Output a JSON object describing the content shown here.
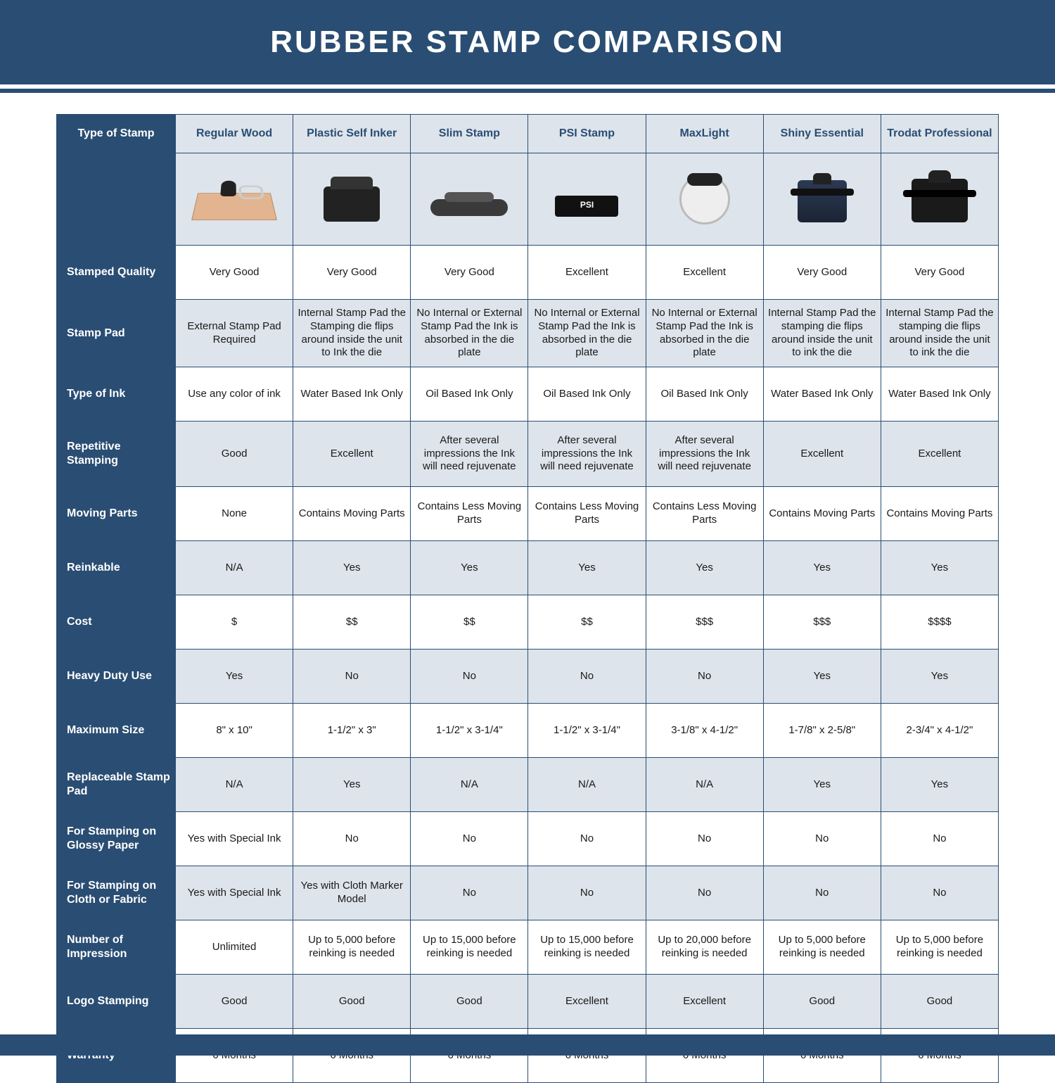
{
  "title": "RUBBER STAMP COMPARISON",
  "colors": {
    "brand": "#2a4d73",
    "alt_row": "#dde4eb",
    "border": "#2a4d73",
    "text": "#1a1a1a",
    "white": "#ffffff"
  },
  "table": {
    "type": "comparison-table",
    "corner_label": "Type of Stamp",
    "columns": [
      "Regular Wood",
      "Plastic Self Inker",
      "Slim Stamp",
      "PSI Stamp",
      "MaxLight",
      "Shiny Essential",
      "Trodat Professional"
    ],
    "icon_keys": [
      "wood",
      "selfink",
      "slim",
      "psi",
      "maxlight",
      "shiny",
      "trodat"
    ],
    "rows": [
      {
        "label": "Stamped Quality",
        "alt": false,
        "tall": false,
        "cells": [
          "Very Good",
          "Very Good",
          "Very Good",
          "Excellent",
          "Excellent",
          "Very Good",
          "Very Good"
        ]
      },
      {
        "label": "Stamp Pad",
        "alt": true,
        "tall": true,
        "cells": [
          "External Stamp Pad Required",
          "Internal Stamp Pad the Stamping die flips around inside the unit to Ink the die",
          "No Internal or External Stamp Pad the Ink is absorbed in the die plate",
          "No Internal or External Stamp Pad the Ink is absorbed in the die plate",
          "No Internal or External Stamp Pad the Ink is absorbed in the die plate",
          "Internal Stamp Pad the stamping die flips around inside the unit to ink the die",
          "Internal Stamp Pad the stamping die flips around inside the unit to ink the die"
        ]
      },
      {
        "label": "Type of Ink",
        "alt": false,
        "tall": false,
        "cells": [
          "Use any color of ink",
          "Water Based Ink Only",
          "Oil Based Ink Only",
          "Oil Based Ink Only",
          "Oil Based Ink Only",
          "Water Based Ink Only",
          "Water Based Ink Only"
        ]
      },
      {
        "label": "Repetitive Stamping",
        "alt": true,
        "tall": true,
        "cells": [
          "Good",
          "Excellent",
          "After several impressions the Ink will need rejuvenate",
          "After several impressions the Ink will need rejuvenate",
          "After several impressions the Ink will need rejuvenate",
          "Excellent",
          "Excellent"
        ]
      },
      {
        "label": "Moving Parts",
        "alt": false,
        "tall": false,
        "cells": [
          "None",
          "Contains Moving Parts",
          "Contains Less Moving Parts",
          "Contains Less Moving Parts",
          "Contains Less Moving Parts",
          "Contains Moving Parts",
          "Contains Moving Parts"
        ]
      },
      {
        "label": "Reinkable",
        "alt": true,
        "tall": false,
        "cells": [
          "N/A",
          "Yes",
          "Yes",
          "Yes",
          "Yes",
          "Yes",
          "Yes"
        ]
      },
      {
        "label": "Cost",
        "alt": false,
        "tall": false,
        "cells": [
          "$",
          "$$",
          "$$",
          "$$",
          "$$$",
          "$$$",
          "$$$$"
        ]
      },
      {
        "label": "Heavy Duty Use",
        "alt": true,
        "tall": false,
        "cells": [
          "Yes",
          "No",
          "No",
          "No",
          "No",
          "Yes",
          "Yes"
        ]
      },
      {
        "label": "Maximum Size",
        "alt": false,
        "tall": false,
        "cells": [
          "8\" x 10\"",
          "1-1/2\" x 3\"",
          "1-1/2\" x 3-1/4\"",
          "1-1/2\" x 3-1/4\"",
          "3-1/8\" x 4-1/2\"",
          "1-7/8\" x 2-5/8\"",
          "2-3/4\" x 4-1/2\""
        ]
      },
      {
        "label": "Replaceable Stamp Pad",
        "alt": true,
        "tall": false,
        "cells": [
          "N/A",
          "Yes",
          "N/A",
          "N/A",
          "N/A",
          "Yes",
          "Yes"
        ]
      },
      {
        "label": "For Stamping on Glossy Paper",
        "alt": false,
        "tall": false,
        "cells": [
          "Yes with Special Ink",
          "No",
          "No",
          "No",
          "No",
          "No",
          "No"
        ]
      },
      {
        "label": "For Stamping on Cloth or Fabric",
        "alt": true,
        "tall": false,
        "cells": [
          "Yes with Special Ink",
          "Yes with Cloth Marker Model",
          "No",
          "No",
          "No",
          "No",
          "No"
        ]
      },
      {
        "label": "Number of Impression",
        "alt": false,
        "tall": false,
        "cells": [
          "Unlimited",
          "Up to 5,000 before reinking is needed",
          "Up to 15,000 before reinking is needed",
          "Up to 15,000 before reinking is needed",
          "Up to 20,000 before reinking is needed",
          "Up to 5,000 before reinking is needed",
          "Up to 5,000 before reinking is needed"
        ]
      },
      {
        "label": "Logo Stamping",
        "alt": true,
        "tall": false,
        "cells": [
          "Good",
          "Good",
          "Good",
          "Excellent",
          "Excellent",
          "Good",
          "Good"
        ]
      },
      {
        "label": "Warranty",
        "alt": false,
        "tall": false,
        "cells": [
          "6 Months",
          "6 Months",
          "6 Months",
          "6 Months",
          "6 Months",
          "6 Months",
          "6 Months"
        ]
      }
    ]
  }
}
